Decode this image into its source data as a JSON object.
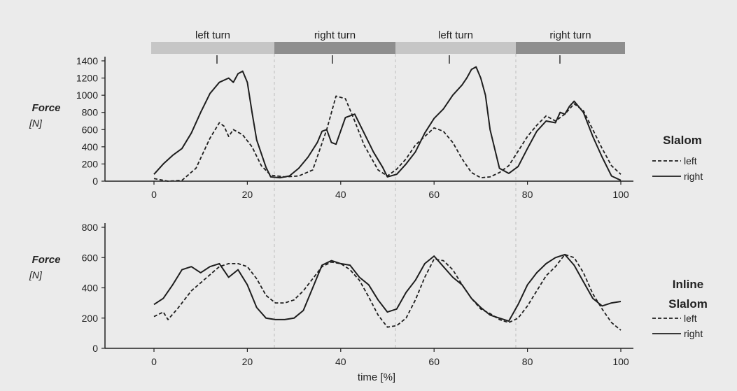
{
  "chart_data": [
    {
      "type": "line",
      "phases": [
        "left turn",
        "right turn",
        "left turn",
        "right turn"
      ],
      "ylabel": "Force",
      "yunit": "[N]",
      "ylim": [
        0,
        1400
      ],
      "yticks": [
        0,
        200,
        400,
        600,
        800,
        1000,
        1200,
        1400
      ],
      "xlim": [
        0,
        100
      ],
      "xticks": [
        0,
        20,
        40,
        60,
        80,
        100
      ],
      "legend_title": "Slalom",
      "series": [
        {
          "name": "left",
          "style": "dashed",
          "x": [
            0,
            3,
            6,
            9,
            12,
            14,
            15,
            16,
            17,
            19,
            21,
            23,
            25,
            28,
            31,
            34,
            37,
            39,
            41,
            43,
            45,
            48,
            50,
            52,
            54,
            56,
            58,
            60,
            62,
            64,
            66,
            68,
            70,
            72,
            74,
            76,
            78,
            80,
            82,
            84,
            86,
            88,
            90,
            92,
            94,
            96,
            98,
            100
          ],
          "y": [
            30,
            0,
            10,
            150,
            500,
            680,
            640,
            520,
            600,
            540,
            400,
            180,
            70,
            50,
            60,
            130,
            600,
            990,
            960,
            700,
            420,
            130,
            60,
            140,
            260,
            420,
            520,
            620,
            580,
            450,
            260,
            100,
            40,
            50,
            100,
            180,
            350,
            520,
            650,
            760,
            700,
            780,
            900,
            820,
            600,
            380,
            180,
            80
          ]
        },
        {
          "name": "right",
          "style": "solid",
          "x": [
            0,
            2,
            4,
            6,
            8,
            10,
            12,
            14,
            16,
            17,
            18,
            19,
            20,
            21,
            22,
            24,
            25,
            27,
            29,
            31,
            33,
            35,
            36,
            37,
            38,
            39,
            41,
            43,
            45,
            47,
            49,
            50,
            52,
            54,
            56,
            58,
            60,
            62,
            64,
            66,
            67,
            68,
            69,
            70,
            71,
            72,
            74,
            76,
            78,
            80,
            82,
            84,
            86,
            87,
            88,
            89,
            90,
            92,
            94,
            96,
            98,
            100
          ],
          "y": [
            80,
            200,
            300,
            380,
            560,
            800,
            1020,
            1150,
            1200,
            1150,
            1250,
            1280,
            1150,
            800,
            480,
            160,
            50,
            40,
            60,
            150,
            280,
            450,
            580,
            600,
            450,
            430,
            740,
            780,
            560,
            340,
            160,
            50,
            80,
            200,
            340,
            560,
            730,
            840,
            1000,
            1120,
            1200,
            1300,
            1330,
            1200,
            1000,
            600,
            150,
            90,
            170,
            380,
            580,
            700,
            680,
            800,
            780,
            870,
            930,
            800,
            520,
            280,
            60,
            10
          ]
        }
      ]
    },
    {
      "type": "line",
      "xlabel": "time [%]",
      "ylabel": "Force",
      "yunit": "[N]",
      "ylim": [
        0,
        800
      ],
      "yticks": [
        0,
        200,
        400,
        600,
        800
      ],
      "xlim": [
        0,
        100
      ],
      "xticks": [
        0,
        20,
        40,
        60,
        80,
        100
      ],
      "legend_title": [
        "Inline",
        "Slalom"
      ],
      "series": [
        {
          "name": "left",
          "style": "dashed",
          "x": [
            0,
            2,
            3,
            5,
            8,
            11,
            14,
            16,
            18,
            20,
            22,
            24,
            26,
            28,
            30,
            32,
            34,
            36,
            38,
            40,
            42,
            44,
            46,
            48,
            50,
            52,
            54,
            56,
            58,
            60,
            62,
            64,
            66,
            68,
            70,
            72,
            74,
            76,
            78,
            80,
            82,
            84,
            86,
            88,
            90,
            92,
            94,
            96,
            98,
            100
          ],
          "y": [
            210,
            240,
            190,
            260,
            380,
            460,
            540,
            560,
            560,
            540,
            460,
            350,
            300,
            300,
            320,
            380,
            460,
            540,
            570,
            560,
            520,
            450,
            340,
            220,
            140,
            150,
            200,
            320,
            470,
            590,
            580,
            520,
            420,
            330,
            260,
            230,
            190,
            170,
            200,
            280,
            380,
            480,
            540,
            620,
            600,
            500,
            360,
            260,
            170,
            120
          ]
        },
        {
          "name": "right",
          "style": "solid",
          "x": [
            0,
            2,
            4,
            6,
            8,
            10,
            12,
            14,
            16,
            18,
            20,
            22,
            24,
            26,
            28,
            30,
            32,
            34,
            36,
            38,
            40,
            42,
            44,
            46,
            48,
            50,
            52,
            54,
            56,
            58,
            60,
            62,
            64,
            66,
            68,
            70,
            72,
            74,
            76,
            78,
            80,
            82,
            84,
            86,
            88,
            90,
            92,
            94,
            96,
            98,
            100
          ],
          "y": [
            290,
            330,
            420,
            520,
            540,
            500,
            540,
            560,
            470,
            520,
            420,
            270,
            200,
            190,
            190,
            200,
            250,
            400,
            550,
            580,
            560,
            550,
            470,
            420,
            320,
            240,
            260,
            370,
            450,
            560,
            610,
            540,
            470,
            420,
            330,
            270,
            220,
            200,
            180,
            290,
            420,
            500,
            560,
            600,
            620,
            550,
            440,
            330,
            280,
            300,
            310
          ]
        }
      ]
    }
  ]
}
